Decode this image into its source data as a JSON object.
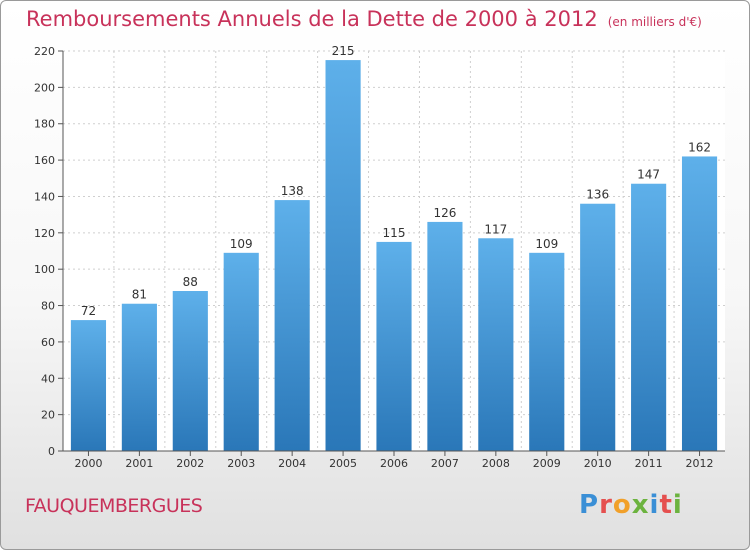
{
  "header": {
    "title": "Remboursements Annuels de la Dette de 2000 à 2012",
    "unit": "(en milliers d'€)"
  },
  "footer": {
    "town": "FAUQUEMBERGUES",
    "logo_text": "Proxiti",
    "logo_letters": [
      "P",
      "r",
      "o",
      "x",
      "i",
      "t",
      "i"
    ],
    "logo_colors": [
      "#3a8fd6",
      "#e5504f",
      "#f1a02a",
      "#6cb33f",
      "#3a8fd6",
      "#e5504f",
      "#6cb33f"
    ]
  },
  "chart_data": {
    "type": "bar",
    "title": "Remboursements Annuels de la Dette de 2000 à 2012",
    "unit": "(en milliers d'€)",
    "categories": [
      "2000",
      "2001",
      "2002",
      "2003",
      "2004",
      "2005",
      "2006",
      "2007",
      "2008",
      "2009",
      "2010",
      "2011",
      "2012"
    ],
    "values": [
      72,
      81,
      88,
      109,
      138,
      215,
      115,
      126,
      117,
      109,
      136,
      147,
      162
    ],
    "ylim": [
      0,
      220
    ],
    "yticks": [
      0,
      20,
      40,
      60,
      80,
      100,
      120,
      140,
      160,
      180,
      200,
      220
    ],
    "grid": true,
    "colors": {
      "bar": "#4a9ee0",
      "bar_top": "#5eb0ea",
      "bar_bottom": "#2a77b8",
      "grid": "#cfcfcf",
      "text": "#333333",
      "title": "#c8325a"
    }
  }
}
